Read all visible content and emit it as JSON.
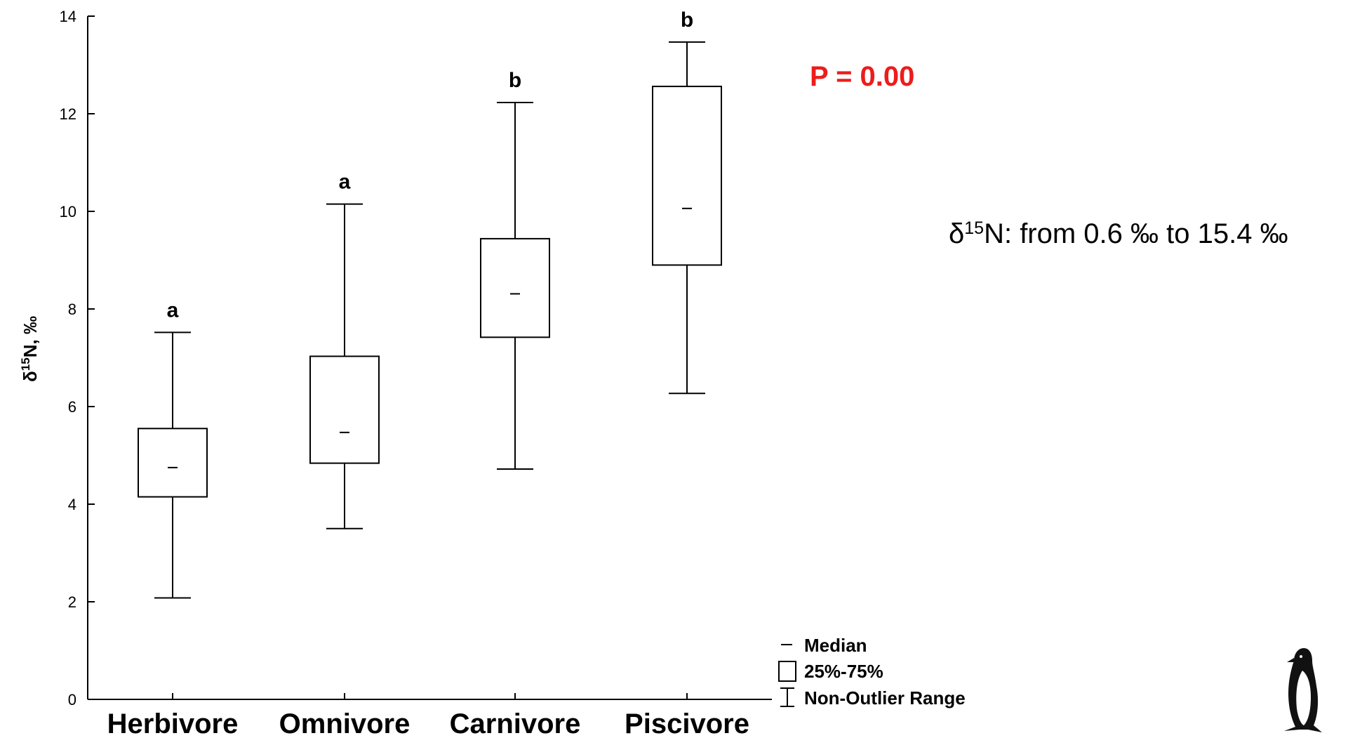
{
  "chart_data": {
    "type": "box",
    "ylabel_main": "δ",
    "ylabel_sup": "15",
    "ylabel_rest": "N, ‰",
    "ylim": [
      0,
      14
    ],
    "yticks": [
      0,
      2,
      4,
      6,
      8,
      10,
      12,
      14
    ],
    "categories": [
      "Herbivore",
      "Omnivore",
      "Carnivore",
      "Piscivore"
    ],
    "boxes": [
      {
        "category": "Herbivore",
        "min": 2.08,
        "q1": 4.15,
        "median": 4.75,
        "q3": 5.55,
        "max": 7.52,
        "group": "a"
      },
      {
        "category": "Omnivore",
        "min": 3.5,
        "q1": 4.84,
        "median": 5.47,
        "q3": 7.03,
        "max": 10.15,
        "group": "a"
      },
      {
        "category": "Carnivore",
        "min": 4.72,
        "q1": 7.42,
        "median": 8.31,
        "q3": 9.44,
        "max": 12.23,
        "group": "b"
      },
      {
        "category": "Piscivore",
        "min": 6.27,
        "q1": 8.9,
        "median": 10.06,
        "q3": 12.56,
        "max": 13.47,
        "group": "b"
      }
    ],
    "legend": {
      "median": "Median",
      "box": "25%-75%",
      "whisker": "Non-Outlier Range"
    },
    "grid": false
  },
  "annotations": {
    "pvalue": "P = 0.00",
    "pvalue_color": "#ee1c1c",
    "range_prefix": "δ",
    "range_sup": "15",
    "range_rest": "N: from 0.6 ‰ to 15.4 ‰"
  },
  "icons": {
    "corner": "penguin-icon"
  }
}
